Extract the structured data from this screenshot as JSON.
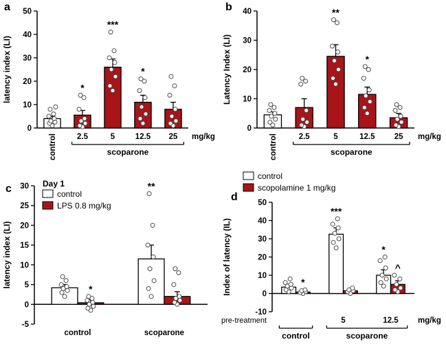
{
  "figure": {
    "bar_red": "#A81418",
    "bar_white": "#ffffff",
    "bar_stroke": "#000000",
    "point_stroke": "#4d4d4d"
  },
  "chart_data": [
    {
      "panel": "a",
      "type": "bar",
      "ylabel": "latency index (LI)",
      "ylim": [
        0,
        50
      ],
      "ytick_step": 10,
      "unit": "mg/kg",
      "margins": {
        "l": 54,
        "r": 46,
        "t": 16,
        "b": 62
      },
      "groups": [
        {
          "tick": "control",
          "rotate_tick": true,
          "bars": [
            {
              "value": 4,
              "error": 1,
              "color": "white",
              "sig": "",
              "points": [
                1,
                2,
                2.5,
                3,
                4,
                5,
                6,
                8,
                9
              ]
            }
          ]
        },
        {
          "tick": "2.5",
          "bars": [
            {
              "value": 5.5,
              "error": 2,
              "color": "red",
              "sig": "*",
              "points": [
                0.5,
                1,
                2,
                3,
                4,
                8,
                13,
                14
              ]
            }
          ]
        },
        {
          "tick": "5",
          "bars": [
            {
              "value": 26,
              "error": 3.5,
              "color": "red",
              "sig": "***",
              "points": [
                16,
                18,
                22,
                25,
                28,
                30,
                33,
                41
              ]
            }
          ]
        },
        {
          "tick": "12.5",
          "bars": [
            {
              "value": 11,
              "error": 3,
              "color": "red",
              "sig": "*",
              "points": [
                2,
                4,
                6,
                9,
                13,
                16,
                20,
                21
              ]
            }
          ]
        },
        {
          "tick": "25",
          "bars": [
            {
              "value": 8,
              "error": 3,
              "color": "red",
              "sig": "",
              "points": [
                1,
                2,
                3,
                5,
                8,
                14,
                18,
                22
              ]
            }
          ]
        }
      ],
      "brackets": [
        {
          "from": 1,
          "to": 4,
          "label": "scoparone"
        }
      ]
    },
    {
      "panel": "b",
      "type": "bar",
      "ylabel": "Latency Index (LI)",
      "ylim": [
        0,
        40
      ],
      "ytick_step": 10,
      "unit": "mg/kg",
      "margins": {
        "l": 54,
        "r": 46,
        "t": 16,
        "b": 62
      },
      "groups": [
        {
          "tick": "control",
          "rotate_tick": true,
          "bars": [
            {
              "value": 4.5,
              "error": 1,
              "color": "white",
              "sig": "",
              "points": [
                1,
                2,
                3,
                4,
                5,
                6,
                7,
                8
              ]
            }
          ]
        },
        {
          "tick": "2.5",
          "bars": [
            {
              "value": 7,
              "error": 3,
              "color": "red",
              "sig": "",
              "points": [
                0.5,
                1,
                2,
                3,
                6,
                15,
                16,
                17
              ]
            }
          ]
        },
        {
          "tick": "5",
          "bars": [
            {
              "value": 24.5,
              "error": 4,
              "color": "red",
              "sig": "**",
              "points": [
                15,
                17,
                20,
                23,
                26,
                28,
                36,
                37
              ]
            }
          ]
        },
        {
          "tick": "12.5",
          "bars": [
            {
              "value": 11.5,
              "error": 2.5,
              "color": "red",
              "sig": "*",
              "points": [
                5,
                7,
                9,
                11,
                13,
                17,
                20,
                21
              ]
            }
          ]
        },
        {
          "tick": "25",
          "bars": [
            {
              "value": 3.5,
              "error": 1.5,
              "color": "red",
              "sig": "",
              "points": [
                0.5,
                1,
                2,
                3,
                4,
                6,
                7,
                8
              ]
            }
          ]
        }
      ],
      "brackets": [
        {
          "from": 1,
          "to": 4,
          "label": "scoparone"
        }
      ]
    },
    {
      "panel": "c",
      "type": "bar",
      "ylabel": "latency index (LI)",
      "ylim": [
        -5,
        30
      ],
      "ytick_step": 5,
      "margins": {
        "l": 50,
        "r": 18,
        "t": 12,
        "b": 42
      },
      "legend": {
        "title": "Day 1",
        "items": [
          {
            "label": "control",
            "color": "white"
          },
          {
            "label": "LPS 0.8 mg/kg",
            "color": "red"
          }
        ],
        "pos": [
          62,
          2
        ]
      },
      "groups": [
        {
          "tick": "control",
          "bold_tick": true,
          "bars": [
            {
              "value": 4.2,
              "error": 0.8,
              "color": "white",
              "sig": "",
              "points": [
                2,
                3,
                3.5,
                4,
                4.5,
                5,
                6,
                7
              ]
            },
            {
              "value": 0.4,
              "error": 0.8,
              "color": "red",
              "sig": "*",
              "points": [
                -1.5,
                -1,
                -0.5,
                0,
                0.5,
                1,
                1.5,
                2
              ]
            }
          ]
        },
        {
          "tick": "scoparone",
          "bold_tick": true,
          "bars": [
            {
              "value": 11.5,
              "error": 3.5,
              "color": "white",
              "sig": "**",
              "points": [
                2,
                4,
                6,
                9,
                12,
                15,
                20,
                28
              ]
            },
            {
              "value": 2,
              "error": 1.2,
              "color": "red",
              "sig": "",
              "points": [
                0,
                0.5,
                1,
                1.5,
                2,
                5,
                8,
                9
              ]
            }
          ]
        }
      ],
      "brackets": []
    },
    {
      "panel": "d",
      "type": "bar",
      "ylabel": "Index of latency (IL)",
      "ylim": [
        -10,
        50
      ],
      "ytick_step": 10,
      "unit": "mg/kg",
      "pre_label": "pre-treatment",
      "margins": {
        "l": 76,
        "r": 46,
        "t": 46,
        "b": 60
      },
      "legend": {
        "items": [
          {
            "label": "control",
            "color": "white"
          },
          {
            "label": "scopolamine 1 mg/kg",
            "color": "red"
          }
        ],
        "pos": [
          34,
          2
        ]
      },
      "groups": [
        {
          "tick": "",
          "bars": [
            {
              "value": 3.5,
              "error": 1,
              "color": "white",
              "sig": "",
              "points": [
                1,
                2,
                3,
                4,
                5,
                6,
                8
              ]
            },
            {
              "value": 0.8,
              "error": 0.6,
              "color": "red",
              "sig": "*",
              "points": [
                0,
                0.5,
                1,
                1.5,
                2
              ]
            }
          ]
        },
        {
          "tick": "5",
          "bars": [
            {
              "value": 32.5,
              "error": 3.5,
              "color": "white",
              "sig": "***",
              "points": [
                25,
                28,
                30,
                33,
                36,
                38,
                41
              ]
            },
            {
              "value": 1.5,
              "error": 1,
              "color": "red",
              "sig": "",
              "points": [
                0,
                1,
                1.5,
                2,
                3
              ]
            }
          ]
        },
        {
          "tick": "12.5",
          "bars": [
            {
              "value": 10,
              "error": 3,
              "color": "white",
              "sig": "*",
              "points": [
                4,
                6,
                8,
                10,
                14,
                18,
                20
              ]
            },
            {
              "value": 5,
              "error": 2,
              "color": "red",
              "sig": "^",
              "points": [
                1,
                2,
                3,
                5,
                8,
                10
              ]
            }
          ]
        }
      ],
      "brackets": [
        {
          "from": 0,
          "to": 0,
          "label": "control"
        },
        {
          "from": 1,
          "to": 2,
          "label": "scoparone"
        }
      ]
    }
  ]
}
